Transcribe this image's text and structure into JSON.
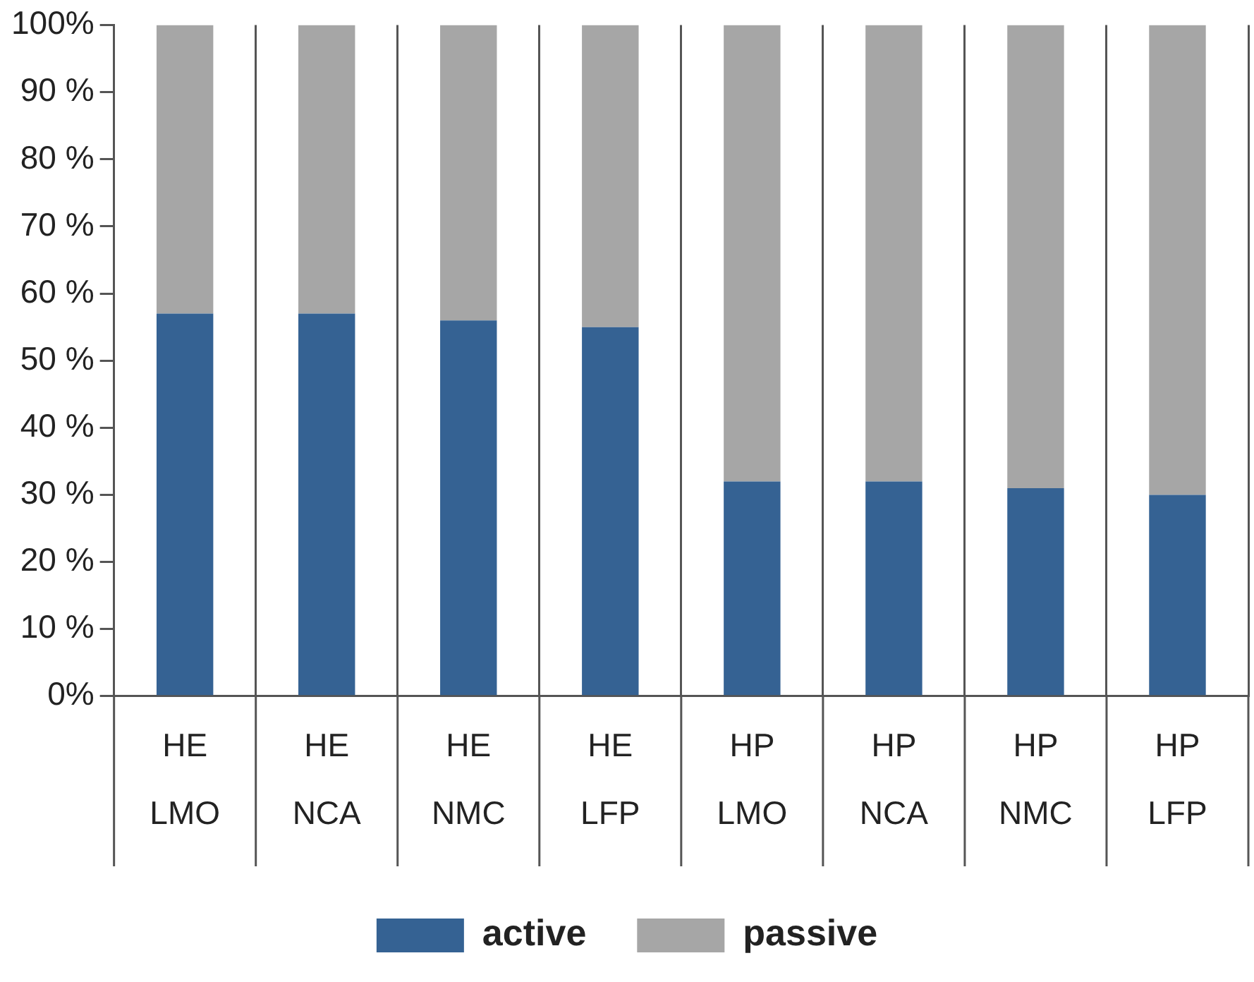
{
  "chart_data": {
    "type": "bar",
    "stacked": true,
    "categories": [
      "HE\nLMO",
      "HE\nNCA",
      "HE\nNMC",
      "HE\nLFP",
      "HP\nLMO",
      "HP\nNCA",
      "HP\nNMC",
      "HP\nLFP"
    ],
    "series": [
      {
        "name": "active",
        "color": "#356293",
        "values": [
          57,
          57,
          56,
          55,
          32,
          32,
          31,
          30
        ]
      },
      {
        "name": "passive",
        "color": "#a6a6a6",
        "values": [
          43,
          43,
          44,
          45,
          68,
          68,
          69,
          70
        ]
      }
    ],
    "ylim": [
      0,
      100
    ],
    "yticks": [
      {
        "value": 0,
        "label": "0%"
      },
      {
        "value": 10,
        "label": "10 %"
      },
      {
        "value": 20,
        "label": "20 %"
      },
      {
        "value": 30,
        "label": "30 %"
      },
      {
        "value": 40,
        "label": "40 %"
      },
      {
        "value": 50,
        "label": "50 %"
      },
      {
        "value": 60,
        "label": "60 %"
      },
      {
        "value": 70,
        "label": "70 %"
      },
      {
        "value": 80,
        "label": "80 %"
      },
      {
        "value": 90,
        "label": "90 %"
      },
      {
        "value": 100,
        "label": "100%"
      }
    ],
    "grid": "x",
    "legend": "bottom"
  }
}
